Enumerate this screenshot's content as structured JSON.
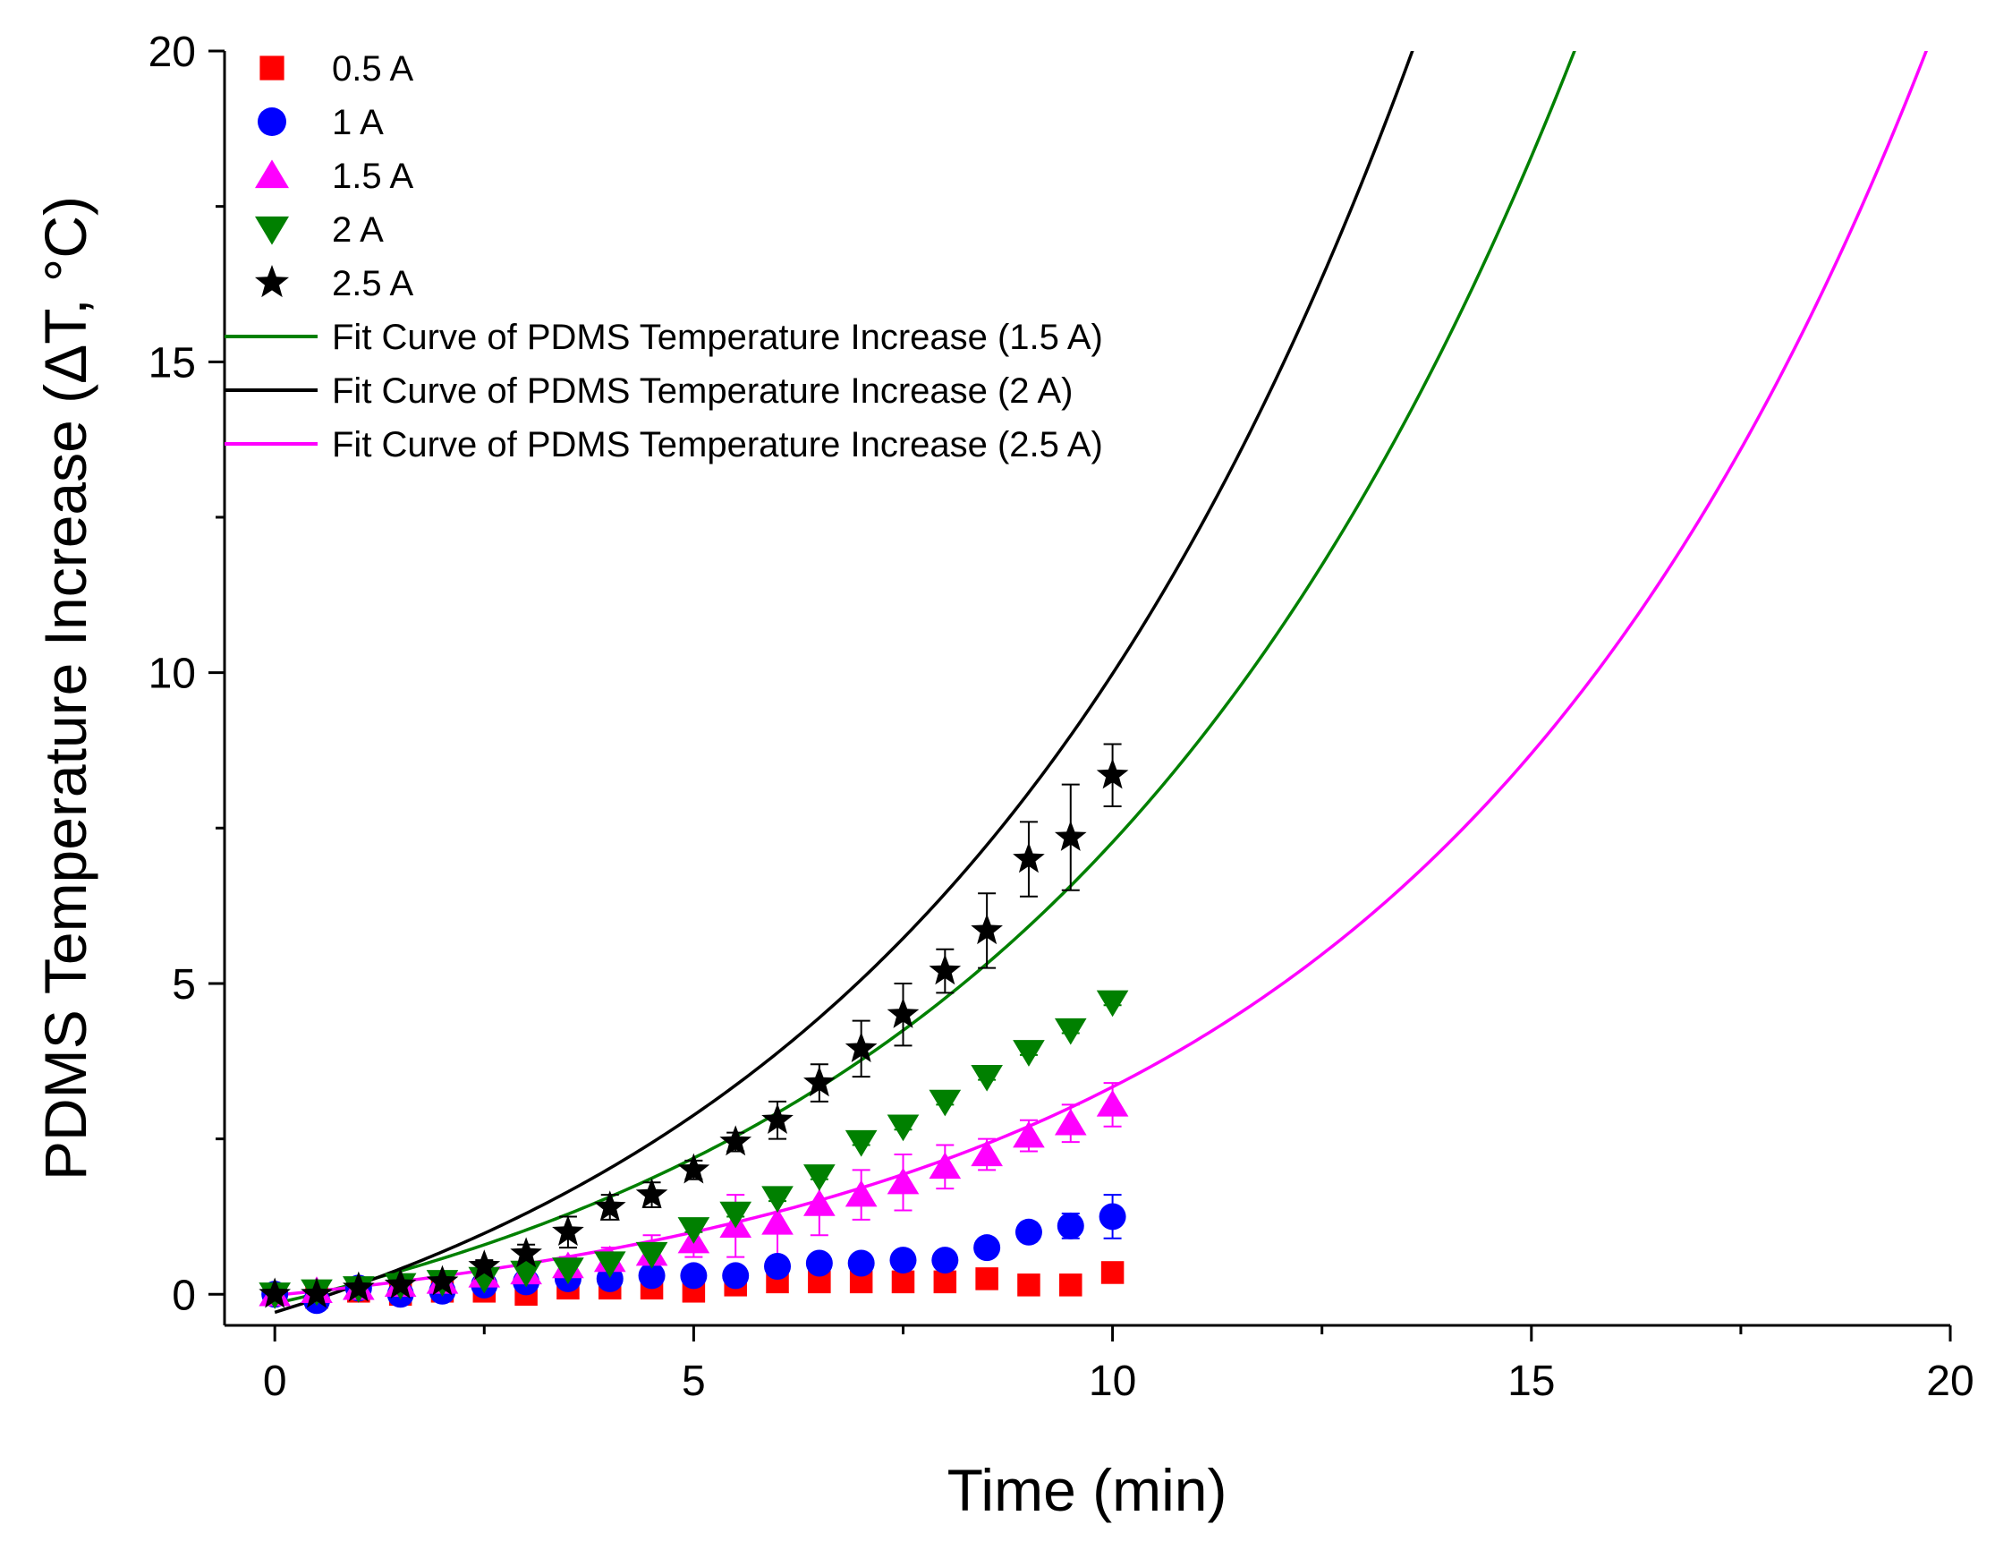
{
  "chart_data": {
    "type": "scatter",
    "title": "",
    "xlabel": "Time (min)",
    "ylabel": "PDMS Temperature Increase (ΔT, °C)",
    "xlim": [
      -0.6,
      20
    ],
    "ylim": [
      -0.5,
      20
    ],
    "x_ticks": [
      0,
      5,
      10,
      15,
      20
    ],
    "x_tick_labels": [
      "0",
      "5",
      "10",
      "15",
      "20"
    ],
    "x_minor_ticks": [
      2.5,
      7.5,
      12.5,
      17.5
    ],
    "y_ticks": [
      0,
      5,
      10,
      15,
      20
    ],
    "y_tick_labels": [
      "0",
      "5",
      "10",
      "15",
      "20"
    ],
    "y_minor_ticks": [
      2.5,
      7.5,
      12.5,
      17.5
    ],
    "legend_position": "top-left",
    "series": [
      {
        "name": "0.5 A",
        "marker": "square",
        "color": "#ff0000",
        "x": [
          0,
          0.5,
          1,
          1.5,
          2,
          2.5,
          3,
          3.5,
          4,
          4.5,
          5,
          5.5,
          6,
          6.5,
          7,
          7.5,
          8,
          8.5,
          9,
          9.5,
          10
        ],
        "y": [
          0,
          -0.05,
          0.05,
          0.0,
          0.05,
          0.05,
          0.0,
          0.1,
          0.1,
          0.1,
          0.05,
          0.15,
          0.2,
          0.2,
          0.2,
          0.2,
          0.2,
          0.25,
          0.15,
          0.15,
          0.35
        ],
        "err": [
          0.1,
          0.05,
          0.05,
          0.05,
          0.05,
          0.05,
          0.05,
          0.05,
          0.05,
          0.05,
          0.05,
          0.05,
          0.05,
          0.05,
          0.05,
          0.05,
          0.05,
          0.05,
          0.05,
          0.05,
          0.1
        ]
      },
      {
        "name": "1 A",
        "marker": "circle",
        "color": "#0000ff",
        "x": [
          0,
          0.5,
          1,
          1.5,
          2,
          2.5,
          3,
          3.5,
          4,
          4.5,
          5,
          5.5,
          6,
          6.5,
          7,
          7.5,
          8,
          8.5,
          9,
          9.5,
          10
        ],
        "y": [
          0,
          -0.1,
          0.1,
          0.0,
          0.05,
          0.15,
          0.2,
          0.25,
          0.25,
          0.3,
          0.3,
          0.3,
          0.45,
          0.5,
          0.5,
          0.55,
          0.55,
          0.75,
          1.0,
          1.1,
          1.25
        ],
        "err": [
          0.1,
          0.1,
          0.1,
          0.1,
          0.15,
          0.1,
          0.1,
          0.1,
          0.1,
          0.1,
          0.1,
          0.1,
          0.1,
          0.1,
          0.1,
          0.1,
          0.1,
          0.1,
          0.15,
          0.2,
          0.35
        ]
      },
      {
        "name": "1.5 A",
        "marker": "triangle-up",
        "color": "#ff00ff",
        "x": [
          0,
          0.5,
          1,
          1.5,
          2,
          2.5,
          3,
          3.5,
          4,
          4.5,
          5,
          5.5,
          6,
          6.5,
          7,
          7.5,
          8,
          8.5,
          9,
          9.5,
          10
        ],
        "y": [
          0,
          0.05,
          0.1,
          0.15,
          0.2,
          0.3,
          0.35,
          0.45,
          0.55,
          0.65,
          0.85,
          1.1,
          1.15,
          1.45,
          1.6,
          1.8,
          2.05,
          2.25,
          2.55,
          2.75,
          3.05
        ],
        "err": [
          0.1,
          0.1,
          0.1,
          0.1,
          0.1,
          0.1,
          0.1,
          0.15,
          0.2,
          0.3,
          0.25,
          0.5,
          0.55,
          0.5,
          0.4,
          0.45,
          0.35,
          0.25,
          0.25,
          0.3,
          0.35
        ]
      },
      {
        "name": "2 A",
        "marker": "triangle-down",
        "color": "#008000",
        "x": [
          0,
          0.5,
          1,
          1.5,
          2,
          2.5,
          3,
          3.5,
          4,
          4.5,
          5,
          5.5,
          6,
          6.5,
          7,
          7.5,
          8,
          8.5,
          9,
          9.5,
          10
        ],
        "y": [
          0,
          0.05,
          0.1,
          0.15,
          0.2,
          0.25,
          0.35,
          0.4,
          0.5,
          0.65,
          1.05,
          1.3,
          1.55,
          1.9,
          2.45,
          2.7,
          3.1,
          3.5,
          3.9,
          4.25,
          4.7
        ],
        "err": [
          0.05,
          0.05,
          0.05,
          0.05,
          0.05,
          0.05,
          0.05,
          0.05,
          0.05,
          0.05,
          0.05,
          0.05,
          0.05,
          0.05,
          0.05,
          0.05,
          0.05,
          0.05,
          0.05,
          0.05,
          0.05
        ]
      },
      {
        "name": "2.5 A",
        "marker": "star",
        "color": "#000000",
        "x": [
          0,
          0.5,
          1,
          1.5,
          2,
          2.5,
          3,
          3.5,
          4,
          4.5,
          5,
          5.5,
          6,
          6.5,
          7,
          7.5,
          8,
          8.5,
          9,
          9.5,
          10
        ],
        "y": [
          0,
          0.0,
          0.1,
          0.15,
          0.2,
          0.45,
          0.65,
          1.0,
          1.4,
          1.6,
          2.0,
          2.45,
          2.8,
          3.4,
          3.95,
          4.5,
          5.2,
          5.85,
          7.0,
          7.35,
          8.35
        ],
        "err": [
          0.1,
          0.1,
          0.1,
          0.1,
          0.1,
          0.1,
          0.15,
          0.25,
          0.2,
          0.2,
          0.15,
          0.15,
          0.3,
          0.3,
          0.45,
          0.5,
          0.35,
          0.6,
          0.6,
          0.85,
          0.5
        ]
      }
    ],
    "fit_curves": [
      {
        "name": "Fit Curve of PDMS Temperature Increase (1.5 A)",
        "color": "#008000",
        "x_max": 16.5,
        "model": "y = a*exp(b*x) + c",
        "params": {
          "a": 2.0,
          "b": 0.155,
          "c": -2.15
        }
      },
      {
        "name": "Fit Curve of PDMS Temperature Increase (2 A)",
        "color": "#000000",
        "x_max": 14.0,
        "model": "y = a*exp(b*x) + c",
        "params": {
          "a": 2.56,
          "b": 0.1612,
          "c": -2.85
        }
      },
      {
        "name": "Fit Curve of PDMS Temperature Increase (2.5 A)",
        "color": "#ff00ff",
        "x_max": 20.0,
        "model": "y = a*exp(b*x) + c",
        "params": {
          "a": 0.784,
          "b": 0.1663,
          "c": -0.8
        }
      }
    ],
    "legend": [
      "0.5 A",
      "1 A",
      "1.5 A",
      "2 A",
      "2.5 A",
      "Fit Curve of PDMS Temperature Increase (1.5 A)",
      "Fit Curve of PDMS Temperature Increase (2 A)",
      "Fit Curve of PDMS Temperature Increase (2.5 A)"
    ]
  }
}
